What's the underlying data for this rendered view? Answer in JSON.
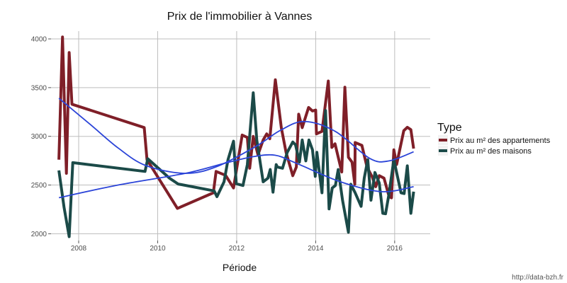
{
  "chart_data": {
    "type": "line",
    "title": "Prix de l'immobilier à Vannes",
    "xlabel": "Période",
    "ylabel": "",
    "xlim": [
      2007.3,
      2016.9
    ],
    "ylim": [
      1930,
      4080
    ],
    "x_ticks": [
      2008,
      2010,
      2012,
      2014,
      2016
    ],
    "y_ticks": [
      2000,
      2500,
      3000,
      3500,
      4000
    ],
    "grid": true,
    "legend": {
      "title": "Type",
      "placement": "right"
    },
    "source": "http://data-bzh.fr",
    "colors": {
      "appartements": "#7f1f28",
      "maisons": "#1b4a48",
      "smooth": "#2b44d8",
      "grid": "#bdbdbd"
    },
    "series": [
      {
        "name": "Prix au m² des appartements",
        "color": "#7f1f28",
        "x": [
          2007.5,
          2007.59,
          2007.69,
          2007.76,
          2007.83,
          2009.66,
          2009.73,
          2010.3,
          2010.5,
          2011.41,
          2011.48,
          2011.72,
          2011.92,
          2012.14,
          2012.27,
          2012.33,
          2012.42,
          2012.54,
          2012.67,
          2012.76,
          2012.84,
          2012.98,
          2013.13,
          2013.25,
          2013.42,
          2013.51,
          2013.57,
          2013.66,
          2013.82,
          2013.92,
          2014.0,
          2014.02,
          2014.16,
          2014.32,
          2014.41,
          2014.49,
          2014.66,
          2014.74,
          2014.83,
          2014.92,
          2014.99,
          2015.0,
          2015.17,
          2015.3,
          2015.43,
          2015.52,
          2015.61,
          2015.73,
          2015.86,
          2015.92,
          2015.98,
          2016.05,
          2016.23,
          2016.32,
          2016.41,
          2016.48
        ],
        "y": [
          2760,
          4020,
          2620,
          3860,
          3330,
          3090,
          2760,
          2390,
          2260,
          2420,
          2640,
          2600,
          2470,
          3013,
          2988,
          2672,
          3000,
          2811,
          2962,
          3025,
          2975,
          3581,
          3089,
          2836,
          2596,
          2685,
          3227,
          3089,
          3296,
          3260,
          3270,
          3025,
          3051,
          3568,
          2886,
          2924,
          2634,
          3505,
          2785,
          2735,
          2508,
          2937,
          2907,
          2685,
          2584,
          2483,
          2596,
          2571,
          2382,
          2369,
          2861,
          2710,
          3058,
          3093,
          3068,
          2874
        ]
      },
      {
        "name": "Prix au m² des maisons",
        "color": "#1b4a48",
        "x": [
          2007.5,
          2007.63,
          2007.76,
          2007.85,
          2009.68,
          2009.75,
          2010.3,
          2010.52,
          2011.43,
          2011.5,
          2011.68,
          2011.78,
          2011.92,
          2011.99,
          2012.16,
          2012.27,
          2012.42,
          2012.51,
          2012.67,
          2012.79,
          2012.85,
          2012.92,
          2013.0,
          2013.03,
          2013.16,
          2013.28,
          2013.42,
          2013.49,
          2013.59,
          2013.66,
          2013.75,
          2013.83,
          2013.92,
          2013.99,
          2014.03,
          2014.16,
          2014.25,
          2014.34,
          2014.42,
          2014.5,
          2014.57,
          2014.68,
          2014.83,
          2014.89,
          2015.0,
          2015.15,
          2015.23,
          2015.32,
          2015.4,
          2015.5,
          2015.61,
          2015.7,
          2015.77,
          2015.85,
          2015.98,
          2016.16,
          2016.24,
          2016.32,
          2016.41,
          2016.48
        ],
        "y": [
          2650,
          2270,
          1970,
          2730,
          2640,
          2770,
          2570,
          2510,
          2440,
          2380,
          2533,
          2760,
          2950,
          2513,
          2495,
          2710,
          3447,
          2962,
          2533,
          2571,
          2659,
          2427,
          2710,
          2685,
          2672,
          2836,
          2942,
          2912,
          2735,
          2962,
          2748,
          2962,
          2861,
          2589,
          2836,
          2420,
          3265,
          2255,
          2470,
          2495,
          2659,
          2344,
          2015,
          2508,
          2420,
          2281,
          2571,
          2760,
          2344,
          2629,
          2521,
          2210,
          2205,
          2394,
          2760,
          2420,
          2412,
          2697,
          2210,
          2432
        ]
      }
    ],
    "smooth": [
      {
        "of": "Prix au m² des appartements",
        "x": [
          2007.5,
          2008.3,
          2009.0,
          2009.7,
          2010.7,
          2011.5,
          2012.5,
          2013.1,
          2013.71,
          2014.5,
          2015.37,
          2015.86,
          2016.48
        ],
        "y": [
          3390,
          3120,
          2880,
          2700,
          2620,
          2690,
          2900,
          3060,
          3152,
          3050,
          2773,
          2748,
          2841
        ]
      },
      {
        "of": "Prix au m² des maisons",
        "x": [
          2007.5,
          2009.0,
          2010.7,
          2011.68,
          2012.4,
          2012.97,
          2013.52,
          2014.63,
          2015.67,
          2016.48
        ],
        "y": [
          2370,
          2500,
          2620,
          2722,
          2790,
          2806,
          2722,
          2533,
          2432,
          2483
        ]
      }
    ]
  }
}
